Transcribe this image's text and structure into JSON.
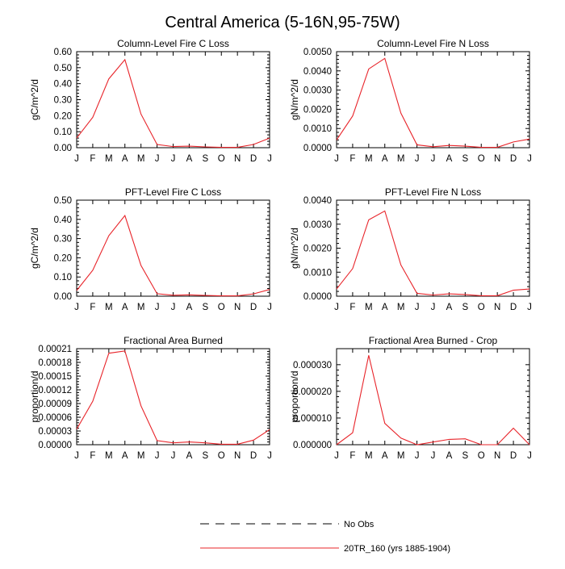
{
  "title": "Central America (5-16N,95-75W)",
  "colors": {
    "model": "#e8242a",
    "obs": "#000000",
    "axis": "#000000"
  },
  "chart_data": [
    {
      "type": "line",
      "title": "Column-Level Fire C Loss",
      "ylabel": "gC/m^2/d",
      "categories": [
        "J",
        "F",
        "M",
        "A",
        "M",
        "J",
        "J",
        "A",
        "S",
        "O",
        "N",
        "D",
        "J"
      ],
      "ylim": [
        0,
        0.6
      ],
      "yticks": [
        0,
        0.1,
        0.2,
        0.3,
        0.4,
        0.5,
        0.6
      ],
      "ytick_labels": [
        "0.00",
        "0.10",
        "0.20",
        "0.30",
        "0.40",
        "0.50",
        "0.60"
      ],
      "series": [
        {
          "values": [
            0.06,
            0.19,
            0.43,
            0.55,
            0.21,
            0.02,
            0.007,
            0.01,
            0.005,
            0.002,
            0.002,
            0.02,
            0.06
          ]
        }
      ]
    },
    {
      "type": "line",
      "title": "Column-Level Fire N Loss",
      "ylabel": "gN/m^2/d",
      "categories": [
        "J",
        "F",
        "M",
        "A",
        "M",
        "J",
        "J",
        "A",
        "S",
        "O",
        "N",
        "D",
        "J"
      ],
      "ylim": [
        0,
        0.005
      ],
      "yticks": [
        0,
        0.001,
        0.002,
        0.003,
        0.004,
        0.005
      ],
      "ytick_labels": [
        "0.0000",
        "0.0010",
        "0.0020",
        "0.0030",
        "0.0040",
        "0.0050"
      ],
      "series": [
        {
          "values": [
            0.0004,
            0.00165,
            0.0041,
            0.00465,
            0.0018,
            0.00015,
            5e-05,
            0.00012,
            8e-05,
            2e-05,
            2e-05,
            0.0003,
            0.00045
          ]
        }
      ]
    },
    {
      "type": "line",
      "title": "PFT-Level Fire C Loss",
      "ylabel": "gC/m^2/d",
      "categories": [
        "J",
        "F",
        "M",
        "A",
        "M",
        "J",
        "J",
        "A",
        "S",
        "O",
        "N",
        "D",
        "J"
      ],
      "ylim": [
        0,
        0.5
      ],
      "yticks": [
        0,
        0.1,
        0.2,
        0.3,
        0.4,
        0.5
      ],
      "ytick_labels": [
        "0.00",
        "0.10",
        "0.20",
        "0.30",
        "0.40",
        "0.50"
      ],
      "series": [
        {
          "values": [
            0.03,
            0.135,
            0.315,
            0.42,
            0.16,
            0.013,
            0.005,
            0.007,
            0.004,
            0.002,
            0.002,
            0.012,
            0.035
          ]
        }
      ]
    },
    {
      "type": "line",
      "title": "PFT-Level Fire N Loss",
      "ylabel": "gN/m^2/d",
      "categories": [
        "J",
        "F",
        "M",
        "A",
        "M",
        "J",
        "J",
        "A",
        "S",
        "O",
        "N",
        "D",
        "J"
      ],
      "ylim": [
        0,
        0.004
      ],
      "yticks": [
        0,
        0.001,
        0.002,
        0.003,
        0.004
      ],
      "ytick_labels": [
        "0.0000",
        "0.0010",
        "0.0020",
        "0.0030",
        "0.0040"
      ],
      "series": [
        {
          "values": [
            0.0003,
            0.00115,
            0.00318,
            0.00355,
            0.0013,
            0.00012,
            5e-05,
            0.0001,
            7e-05,
            2e-05,
            2e-05,
            0.00025,
            0.0003
          ]
        }
      ]
    },
    {
      "type": "line",
      "title": "Fractional Area Burned",
      "ylabel": "proportion/d",
      "categories": [
        "J",
        "F",
        "M",
        "A",
        "M",
        "J",
        "J",
        "A",
        "S",
        "O",
        "N",
        "D",
        "J"
      ],
      "ylim": [
        0,
        0.00021
      ],
      "yticks": [
        0,
        3e-05,
        6e-05,
        9e-05,
        0.00012,
        0.00015,
        0.00018,
        0.00021
      ],
      "ytick_labels": [
        "0.00000",
        "0.00003",
        "0.00006",
        "0.00009",
        "0.00012",
        "0.00015",
        "0.00018",
        "0.00021"
      ],
      "series": [
        {
          "values": [
            3.4e-05,
            9.5e-05,
            0.0002,
            0.000205,
            8.5e-05,
            9e-06,
            4e-06,
            6e-06,
            4e-06,
            1e-06,
            1e-06,
            1e-05,
            3.3e-05
          ]
        }
      ]
    },
    {
      "type": "line",
      "title": "Fractional Area Burned - Crop",
      "ylabel": "proportion/d",
      "categories": [
        "J",
        "F",
        "M",
        "A",
        "M",
        "J",
        "J",
        "A",
        "S",
        "O",
        "N",
        "D",
        "J"
      ],
      "ylim": [
        0,
        3.6e-05
      ],
      "yticks": [
        0,
        1e-05,
        2e-05,
        3e-05
      ],
      "ytick_labels": [
        "0.000000",
        "0.000010",
        "0.000020",
        "0.000030"
      ],
      "series": [
        {
          "values": [
            0.0,
            4.5e-06,
            3.35e-05,
            8e-06,
            2.5e-06,
            0.0,
            1e-06,
            2e-06,
            2.2e-06,
            0.0,
            0.0,
            6.2e-06,
            0.0
          ]
        }
      ]
    }
  ],
  "legend": {
    "obs_label": "No Obs",
    "model_label": "20TR_160 (yrs 1885-1904)"
  }
}
